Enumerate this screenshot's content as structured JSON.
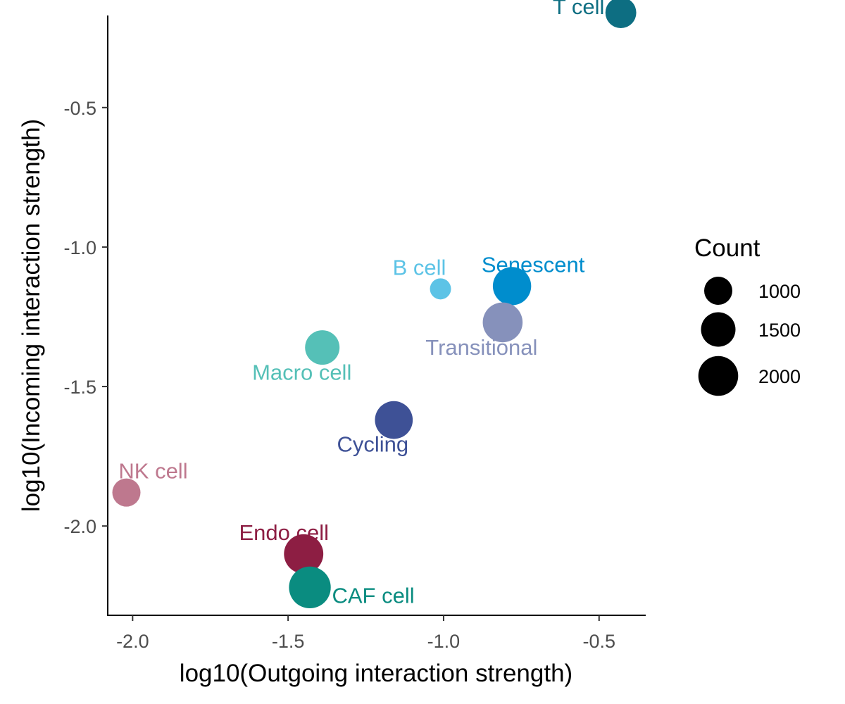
{
  "chart_data": {
    "type": "scatter",
    "xlabel": "log10(Outgoing interaction strength)",
    "ylabel": "log10(Incoming interaction strength)",
    "xlim": [
      -2.08,
      -0.35
    ],
    "ylim": [
      -2.32,
      -0.17
    ],
    "xticks": [
      -2.0,
      -1.5,
      -1.0,
      -0.5
    ],
    "xtick_labels": [
      "-2.0",
      "-1.5",
      "-1.0",
      "-0.5"
    ],
    "yticks": [
      -0.5,
      -1.0,
      -1.5,
      -2.0
    ],
    "ytick_labels": [
      "-0.5",
      "-1.0",
      "-1.5",
      "-2.0"
    ],
    "grid": false,
    "legend": {
      "title": "Count",
      "placement": "right",
      "entries": [
        {
          "label": "1000",
          "count": 1000
        },
        {
          "label": "1500",
          "count": 1500
        },
        {
          "label": "2000",
          "count": 2000
        }
      ]
    },
    "points": [
      {
        "label": "T cell",
        "x": -0.43,
        "y": -0.16,
        "count": 1200,
        "color": "#0D6E82"
      },
      {
        "label": "B cell",
        "x": -1.01,
        "y": -1.15,
        "count": 560,
        "color": "#5CC3E6"
      },
      {
        "label": "Senescent",
        "x": -0.78,
        "y": -1.14,
        "count": 1850,
        "color": "#008DCD"
      },
      {
        "label": "Transitional",
        "x": -0.81,
        "y": -1.27,
        "count": 2000,
        "color": "#8691BB"
      },
      {
        "label": "Macro cell",
        "x": -1.39,
        "y": -1.36,
        "count": 1500,
        "color": "#55C0B7"
      },
      {
        "label": "Cycling",
        "x": -1.16,
        "y": -1.62,
        "count": 1800,
        "color": "#3E5196"
      },
      {
        "label": "NK cell",
        "x": -2.02,
        "y": -1.88,
        "count": 1000,
        "color": "#BE788E"
      },
      {
        "label": "Endo cell",
        "x": -1.45,
        "y": -2.1,
        "count": 1950,
        "color": "#8D1E43"
      },
      {
        "label": "CAF cell",
        "x": -1.43,
        "y": -2.22,
        "count": 2200,
        "color": "#0A8C80"
      }
    ]
  }
}
